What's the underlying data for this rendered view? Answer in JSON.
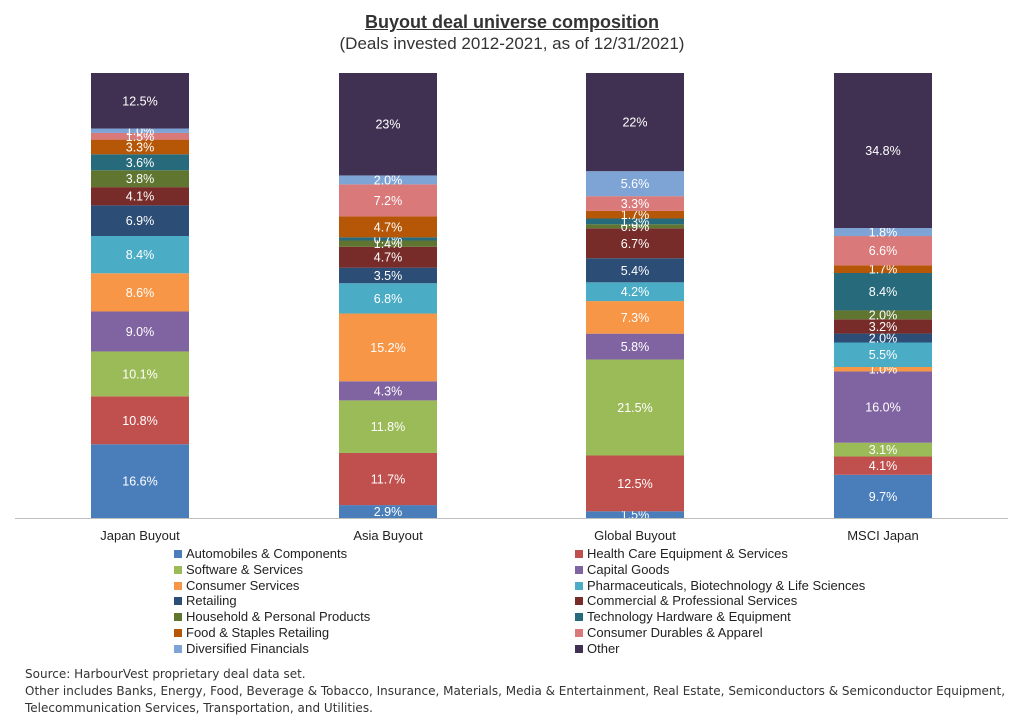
{
  "title": "Buyout deal universe composition",
  "subtitle": "(Deals invested 2012-2021, as of 12/31/2021)",
  "chart_data": {
    "type": "bar",
    "stacked": true,
    "normalized_percent": true,
    "categories": [
      "Japan Buyout",
      "Asia Buyout",
      "Global Buyout",
      "MSCI Japan"
    ],
    "series": [
      {
        "name": "Automobiles & Components",
        "color": "#4a7ebb",
        "values": [
          16.6,
          2.9,
          1.5,
          9.7
        ],
        "labels": [
          "16.6%",
          "2.9%",
          "1.5%",
          "9.7%"
        ]
      },
      {
        "name": "Health Care Equipment & Services",
        "color": "#c0504d",
        "values": [
          10.8,
          11.7,
          12.5,
          4.1
        ],
        "labels": [
          "10.8%",
          "11.7%",
          "12.5%",
          "4.1%"
        ]
      },
      {
        "name": "Software & Services",
        "color": "#9bbb59",
        "values": [
          10.1,
          11.8,
          21.5,
          3.1
        ],
        "labels": [
          "10.1%",
          "11.8%",
          "21.5%",
          "3.1%"
        ]
      },
      {
        "name": "Capital Goods",
        "color": "#8064a2",
        "values": [
          9.0,
          4.3,
          5.8,
          16.0
        ],
        "labels": [
          "9.0%",
          "4.3%",
          "5.8%",
          "16.0%"
        ]
      },
      {
        "name": "Consumer Services",
        "color": "#f79646",
        "values": [
          8.6,
          15.2,
          7.3,
          1.0
        ],
        "labels": [
          "8.6%",
          "15.2%",
          "7.3%",
          "1.0%"
        ]
      },
      {
        "name": "Pharmaceuticals, Biotechnology & Life Sciences",
        "color": "#4bacc6",
        "values": [
          8.4,
          6.8,
          4.2,
          5.5
        ],
        "labels": [
          "8.4%",
          "6.8%",
          "4.2%",
          "5.5%"
        ]
      },
      {
        "name": "Retailing",
        "color": "#2c4d75",
        "values": [
          6.9,
          3.5,
          5.4,
          2.0
        ],
        "labels": [
          "6.9%",
          "3.5%",
          "5.4%",
          "2.0%"
        ]
      },
      {
        "name": "Commercial & Professional Services",
        "color": "#772c2a",
        "values": [
          4.1,
          4.7,
          6.7,
          3.2
        ],
        "labels": [
          "4.1%",
          "4.7%",
          "6.7%",
          "3.2%"
        ]
      },
      {
        "name": "Household & Personal Products",
        "color": "#5f7530",
        "values": [
          3.8,
          1.4,
          0.9,
          2.0
        ],
        "labels": [
          "3.8%",
          "1.4%",
          "0.9%",
          "2.0%"
        ]
      },
      {
        "name": "Technology Hardware & Equipment",
        "color": "#276a7c",
        "values": [
          3.6,
          0.7,
          1.3,
          8.4
        ],
        "labels": [
          "3.6%",
          "0.7%",
          "1.3%",
          "8.4%"
        ]
      },
      {
        "name": "Food & Staples Retailing",
        "color": "#b65708",
        "values": [
          3.3,
          4.7,
          1.7,
          1.7
        ],
        "labels": [
          "3.3%",
          "4.7%",
          "1.7%",
          "1.7%"
        ]
      },
      {
        "name": "Consumer Durables & Apparel",
        "color": "#d9797a",
        "values": [
          1.5,
          7.2,
          3.3,
          6.6
        ],
        "labels": [
          "1.5%",
          "7.2%",
          "3.3%",
          "6.6%"
        ]
      },
      {
        "name": "Diversified Financials",
        "color": "#7ea4d6",
        "values": [
          1.0,
          2.0,
          5.6,
          1.8
        ],
        "labels": [
          "1.0%",
          "2.0%",
          "5.6%",
          "1.8%"
        ]
      },
      {
        "name": "Other",
        "color": "#403152",
        "values": [
          12.5,
          23.0,
          22.0,
          34.8
        ],
        "labels": [
          "12.5%",
          "23%",
          "22%",
          "34.8%"
        ]
      }
    ]
  },
  "legend": {
    "left": [
      "Automobiles & Components",
      "Software & Services",
      "Consumer Services",
      "Retailing",
      "Household & Personal Products",
      "Food & Staples Retailing",
      "Diversified Financials"
    ],
    "right": [
      "Health Care Equipment & Services",
      "Capital Goods",
      "Pharmaceuticals, Biotechnology & Life Sciences",
      "Commercial & Professional Services",
      "Technology Hardware & Equipment",
      "Consumer Durables & Apparel",
      "Other"
    ]
  },
  "notes": {
    "source": "Source: HarbourVest proprietary deal data set.",
    "other_line1": "Other includes Banks, Energy, Food, Beverage & Tobacco,  Insurance, Materials, Media & Entertainment, Real Estate, Semiconductors & Semiconductor Equipment,",
    "other_line2": "Telecommunication Services, Transportation, and Utilities."
  }
}
